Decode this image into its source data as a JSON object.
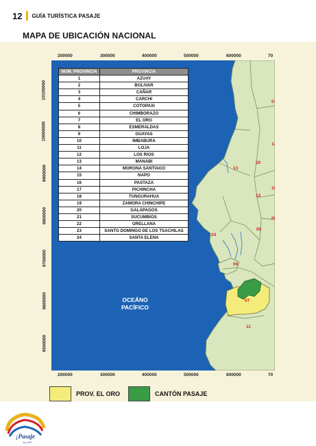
{
  "header": {
    "page_number": "12",
    "title": "GUÍA TURÍSTICA PASAJE"
  },
  "map": {
    "title": "MAPA DE UBICACIÓN NACIONAL",
    "x_ticks": [
      "200000",
      "300000",
      "400000",
      "500000",
      "600000",
      "70"
    ],
    "y_ticks": [
      "10100000",
      "10000000",
      "9900000",
      "9800000",
      "9700000",
      "9600000",
      "9500000"
    ],
    "ocean_label_1": "OCEÁNO",
    "ocean_label_2": "PACÍFICO",
    "region_labels": [
      "13",
      "12",
      "09",
      "24",
      "07",
      "11",
      "20",
      "10",
      "06",
      "14",
      "01",
      "09"
    ],
    "colors": {
      "ocean": "#1d63b5",
      "land": "#d9e6be",
      "el_oro": "#f4ec7a",
      "pasaje": "#3a9b45",
      "region_label": "#d32020",
      "border": "#8a9a70"
    }
  },
  "table": {
    "headers": [
      "NUM. PROVINCIA",
      "PROVINCIA"
    ],
    "rows": [
      [
        "1",
        "AZUAY"
      ],
      [
        "2",
        "BOLIVAR"
      ],
      [
        "3",
        "CAÑAR"
      ],
      [
        "4",
        "CARCHI"
      ],
      [
        "5",
        "COTOPAXI"
      ],
      [
        "6",
        "CHIMBORAZO"
      ],
      [
        "7",
        "EL ORO"
      ],
      [
        "8",
        "ESMERALDAS"
      ],
      [
        "9",
        "GUAYAS"
      ],
      [
        "10",
        "IMBABURA"
      ],
      [
        "11",
        "LOJA"
      ],
      [
        "12",
        "LOS RIOS"
      ],
      [
        "13",
        "MANABI"
      ],
      [
        "14",
        "MORONA SANTIAGO"
      ],
      [
        "15",
        "NAPO"
      ],
      [
        "16",
        "PASTAZA"
      ],
      [
        "17",
        "PICHINCHA"
      ],
      [
        "18",
        "TUNGURAHUA"
      ],
      [
        "19",
        "ZAMORA CHINCHIPE"
      ],
      [
        "20",
        "GALAPAGOS"
      ],
      [
        "21",
        "SUCUMBIOS"
      ],
      [
        "22",
        "ORELLANA"
      ],
      [
        "23",
        "SANTO DOMINGO DE LOS TSACHILAS"
      ],
      [
        "24",
        "SANTA ELENA"
      ]
    ]
  },
  "legend": [
    {
      "label": "PROV. EL ORO",
      "color": "#f4ec7a"
    },
    {
      "label": "CANTÓN PASAJE",
      "color": "#3a9b45"
    }
  ],
  "logo": {
    "text": "¡Pasaje",
    "subtext": "soy Yo!"
  }
}
